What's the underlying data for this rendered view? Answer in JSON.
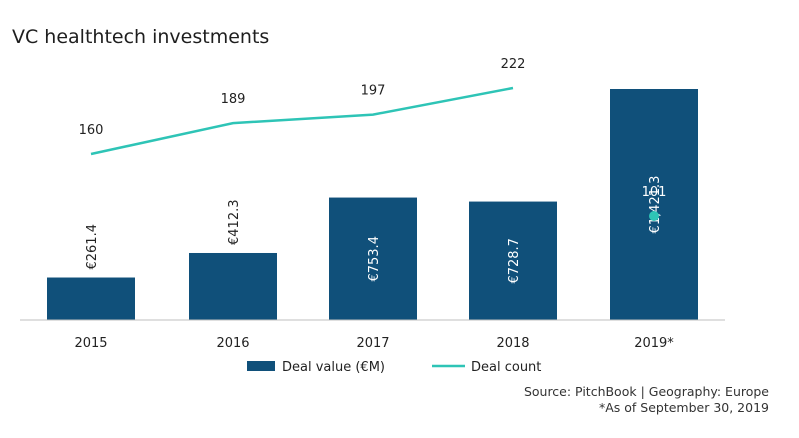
{
  "chart_data": {
    "type": "bar",
    "title": "VC healthtech investments",
    "categories": [
      "2015",
      "2016",
      "2017",
      "2018",
      "2019*"
    ],
    "series": [
      {
        "name": "Deal value (€M)",
        "type": "bar",
        "values": [
          261.4,
          412.3,
          753.4,
          728.7,
          1421.3
        ],
        "labels": [
          "€261.4",
          "€412.3",
          "€753.4",
          "€728.7",
          "€1,421.3"
        ],
        "color": "#10507a"
      },
      {
        "name": "Deal count",
        "type": "line",
        "values": [
          160,
          189,
          197,
          222,
          101
        ],
        "labels": [
          "160",
          "189",
          "197",
          "222",
          "101"
        ],
        "color": "#2ec4b6"
      }
    ],
    "xlabel": "",
    "ylabel": "",
    "legend": "bottom",
    "grid": false
  },
  "source": "Source: PitchBook | Geography: Europe",
  "note": "*As of September 30, 2019",
  "colors": {
    "bar": "#10507a",
    "line": "#2ec4b6",
    "axis": "#bfbfbf",
    "text": "#222222"
  }
}
